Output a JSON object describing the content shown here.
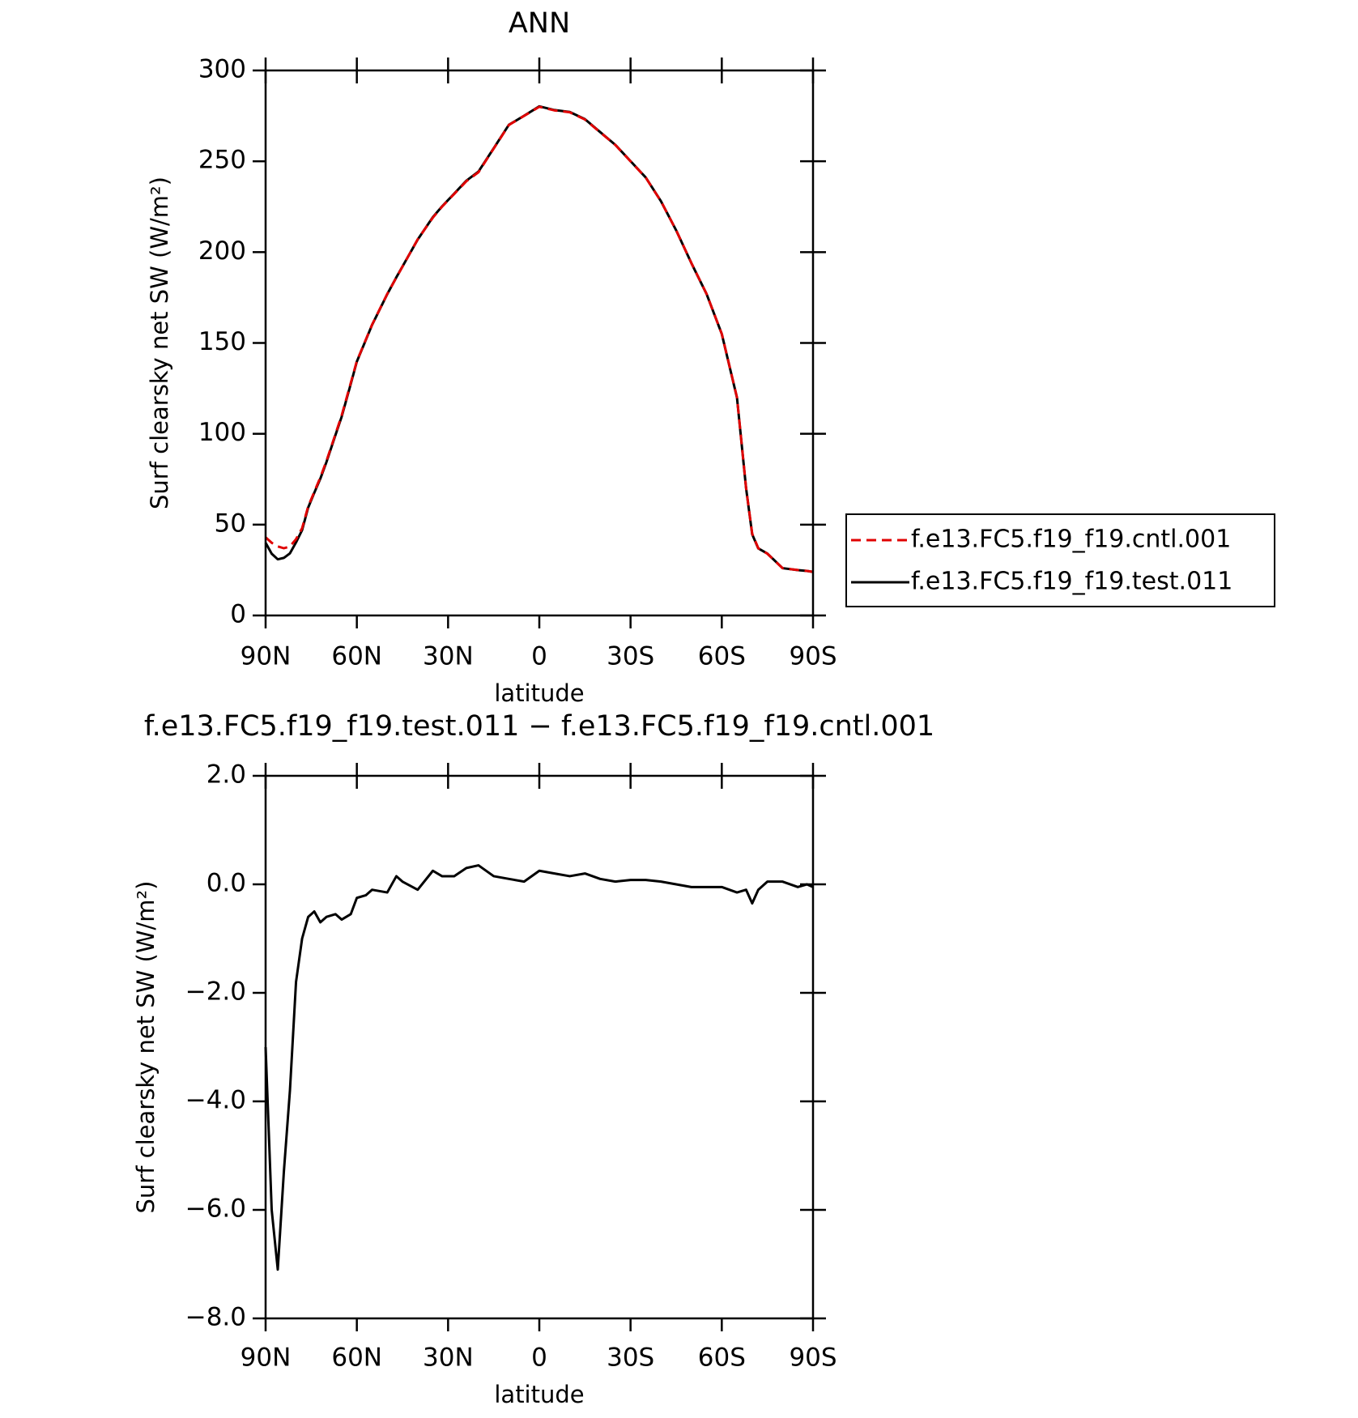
{
  "chart_data": [
    {
      "type": "line",
      "title": "ANN",
      "xlabel": "latitude",
      "ylabel": "Surf clearsky net SW (W/m²)",
      "x": [
        90,
        88,
        86,
        84,
        82,
        80,
        78,
        76,
        74,
        72,
        70,
        67,
        65,
        62,
        60,
        57,
        55,
        50,
        47,
        45,
        40,
        35,
        32,
        28,
        24,
        20,
        15,
        10,
        5,
        0,
        -5,
        -10,
        -15,
        -20,
        -25,
        -30,
        -35,
        -40,
        -45,
        -50,
        -55,
        -60,
        -65,
        -68,
        -70,
        -72,
        -75,
        -80,
        -85,
        -88,
        -90
      ],
      "xlim": [
        90,
        -90
      ],
      "xticks": [
        {
          "value": 90,
          "label": "90N"
        },
        {
          "value": 60,
          "label": "60N"
        },
        {
          "value": 30,
          "label": "30N"
        },
        0,
        {
          "value": -30,
          "label": "30S"
        },
        {
          "value": -60,
          "label": "60S"
        },
        {
          "value": -90,
          "label": "90S"
        }
      ],
      "ylim": [
        0,
        300
      ],
      "yticks": [
        0,
        50,
        100,
        150,
        200,
        250,
        300
      ],
      "legend": "right",
      "series": [
        {
          "name": "f.e13.FC5.f19_f19.cntl.001",
          "color": "#e00000",
          "linestyle": "dashed",
          "values": [
            43,
            40,
            38,
            37,
            38,
            42,
            48,
            60,
            68,
            76,
            85,
            100,
            110,
            128,
            140,
            152,
            160,
            177,
            186,
            192,
            207,
            219,
            225,
            232,
            239,
            244,
            257,
            270,
            275,
            280,
            278,
            277,
            273,
            266,
            259,
            250,
            241,
            228,
            212,
            194,
            177,
            155,
            120,
            70,
            45,
            37,
            34,
            26,
            25,
            24.5,
            24
          ]
        },
        {
          "name": "f.e13.FC5.f19_f19.test.011",
          "color": "#000000",
          "linestyle": "solid",
          "values": [
            40,
            34,
            30.9,
            31.7,
            34.2,
            40.2,
            47,
            59.4,
            67.5,
            75.3,
            84.4,
            99.45,
            109.35,
            127.45,
            139.75,
            151.8,
            159.9,
            176.85,
            186.15,
            192.05,
            206.9,
            219.25,
            225.15,
            232.15,
            239.3,
            244.35,
            257.15,
            270.1,
            275.05,
            280.25,
            278.2,
            277.15,
            273.2,
            266.1,
            259.05,
            250.08,
            241.08,
            228.05,
            212,
            193.95,
            176.95,
            154.95,
            119.85,
            69.9,
            44.65,
            36.9,
            34.05,
            26.05,
            24.95,
            24.5,
            23.95
          ]
        }
      ]
    },
    {
      "type": "line",
      "title": "f.e13.FC5.f19_f19.test.011 − f.e13.FC5.f19_f19.cntl.001",
      "xlabel": "latitude",
      "ylabel": "Surf clearsky net SW (W/m²)",
      "x": [
        90,
        88,
        86,
        84,
        82,
        80,
        78,
        76,
        74,
        72,
        70,
        67,
        65,
        62,
        60,
        57,
        55,
        50,
        47,
        45,
        40,
        35,
        32,
        28,
        24,
        20,
        15,
        10,
        5,
        0,
        -5,
        -10,
        -15,
        -20,
        -25,
        -30,
        -35,
        -40,
        -45,
        -50,
        -55,
        -60,
        -65,
        -68,
        -70,
        -72,
        -75,
        -80,
        -85,
        -88,
        -90
      ],
      "xlim": [
        90,
        -90
      ],
      "xticks": [
        {
          "value": 90,
          "label": "90N"
        },
        {
          "value": 60,
          "label": "60N"
        },
        {
          "value": 30,
          "label": "30N"
        },
        0,
        {
          "value": -30,
          "label": "30S"
        },
        {
          "value": -60,
          "label": "60S"
        },
        {
          "value": -90,
          "label": "90S"
        }
      ],
      "ylim": [
        -8,
        2
      ],
      "yticks": [
        {
          "value": -8,
          "label": "−8.0"
        },
        {
          "value": -6,
          "label": "−6.0"
        },
        {
          "value": -4,
          "label": "−4.0"
        },
        {
          "value": -2,
          "label": "−2.0"
        },
        {
          "value": 0,
          "label": "0.0"
        },
        {
          "value": 2,
          "label": "2.0"
        }
      ],
      "series": [
        {
          "color": "#000000",
          "linestyle": "solid",
          "values": [
            -3.0,
            -6.0,
            -7.1,
            -5.3,
            -3.8,
            -1.8,
            -1.0,
            -0.6,
            -0.5,
            -0.7,
            -0.6,
            -0.55,
            -0.65,
            -0.55,
            -0.25,
            -0.2,
            -0.1,
            -0.15,
            0.15,
            0.05,
            -0.1,
            0.25,
            0.15,
            0.15,
            0.3,
            0.35,
            0.15,
            0.1,
            0.05,
            0.25,
            0.2,
            0.15,
            0.2,
            0.1,
            0.05,
            0.08,
            0.08,
            0.05,
            0.0,
            -0.05,
            -0.05,
            -0.05,
            -0.15,
            -0.1,
            -0.35,
            -0.1,
            0.05,
            0.05,
            -0.05,
            0.0,
            -0.05
          ]
        }
      ]
    }
  ]
}
